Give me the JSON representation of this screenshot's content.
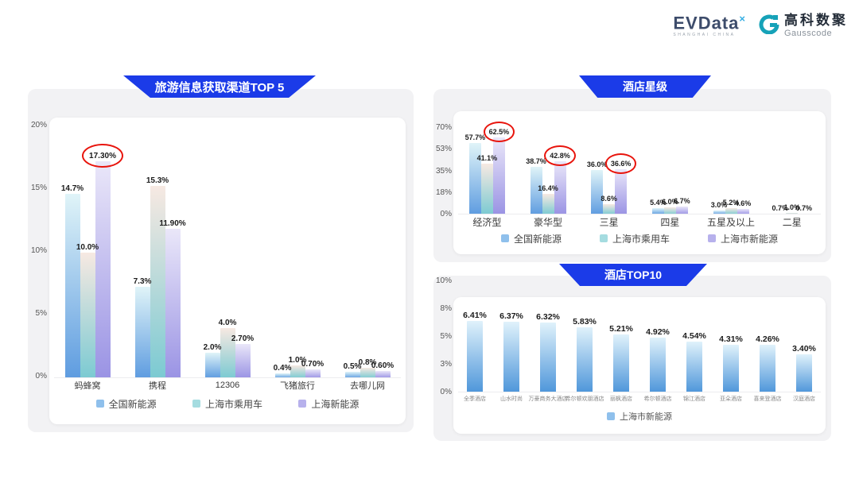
{
  "header": {
    "evdata_name": "EVData",
    "evdata_sup": "×",
    "evdata_tagline": "SHANGHAI CHINA",
    "gausscode_cn": "高科数聚",
    "gausscode_en": "Gausscode"
  },
  "colors": {
    "banner_blue": "#1b3be8",
    "panel_gray": "#f2f2f4",
    "annotation_red": "#e8140c",
    "gauss_teal": "#16a2b8"
  },
  "chart_data": [
    {
      "type": "bar",
      "title": "旅游信息获取渠道TOP 5",
      "categories": [
        "蚂蜂窝",
        "携程",
        "12306",
        "飞猪旅行",
        "去哪儿网"
      ],
      "yticks": [
        "0%",
        "5%",
        "10%",
        "15%",
        "20%"
      ],
      "ylim": [
        0,
        20
      ],
      "grid": false,
      "legend_position": "bottom",
      "series": [
        {
          "name": "全国新能源",
          "values": [
            14.7,
            7.3,
            2.0,
            0.4,
            0.5
          ],
          "labels": [
            "14.7%",
            "7.3%",
            "2.0%",
            "0.4%",
            "0.5%"
          ],
          "swatch": "#8fc0ec",
          "gradient": [
            "#e0f4f8",
            "#5e9ce0"
          ],
          "circled": []
        },
        {
          "name": "上海市乘用车",
          "values": [
            10.0,
            15.3,
            4.0,
            1.0,
            0.8
          ],
          "labels": [
            "10.0%",
            "15.3%",
            "4.0%",
            "1.0%",
            "0.8%"
          ],
          "swatch": "#a5dce0",
          "gradient": [
            "#f7e9e2",
            "#7bcad2"
          ],
          "circled": []
        },
        {
          "name": "上海新能源",
          "values": [
            17.3,
            11.9,
            2.7,
            0.7,
            0.6
          ],
          "labels": [
            "17.30%",
            "11.90%",
            "2.70%",
            "0.70%",
            "0.60%"
          ],
          "swatch": "#b7b1ec",
          "gradient": [
            "#eae7f9",
            "#9a93e4"
          ],
          "circled": [
            0
          ]
        }
      ]
    },
    {
      "type": "bar",
      "title": "酒店星级",
      "categories": [
        "经济型",
        "豪华型",
        "三星",
        "四星",
        "五星及以上",
        "二星"
      ],
      "yticks": [
        "0%",
        "18%",
        "35%",
        "53%",
        "70%"
      ],
      "ylim": [
        0,
        70
      ],
      "grid": false,
      "legend_position": "bottom",
      "series": [
        {
          "name": "全国新能源",
          "values": [
            57.7,
            38.7,
            36.0,
            5.4,
            3.0,
            0.7
          ],
          "labels": [
            "57.7%",
            "38.7%",
            "36.0%",
            "5.4%",
            "3.0%",
            "0.7%"
          ],
          "swatch": "#8fc0ec",
          "gradient": [
            "#e0f4f8",
            "#5e9ce0"
          ],
          "circled": []
        },
        {
          "name": "上海市乘用车",
          "values": [
            41.1,
            16.4,
            8.6,
            6.0,
            5.2,
            1.0
          ],
          "labels": [
            "41.1%",
            "16.4%",
            "8.6%",
            "6.0%",
            "5.2%",
            "1.0%"
          ],
          "swatch": "#a5dce0",
          "gradient": [
            "#f7e9e2",
            "#7bcad2"
          ],
          "circled": []
        },
        {
          "name": "上海市新能源",
          "values": [
            62.5,
            42.8,
            36.6,
            6.7,
            4.6,
            0.7
          ],
          "labels": [
            "62.5%",
            "42.8%",
            "36.6%",
            "6.7%",
            "4.6%",
            "0.7%"
          ],
          "swatch": "#b7b1ec",
          "gradient": [
            "#eae7f9",
            "#9a93e4"
          ],
          "circled": [
            0,
            1,
            2
          ]
        }
      ]
    },
    {
      "type": "bar",
      "title": "酒店TOP10",
      "categories": [
        "全季酒店",
        "山水时尚",
        "万豪商务大酒店",
        "希尔顿欢朋酒店",
        "丽枫酒店",
        "希尔顿酒店",
        "锦江酒店",
        "亚朵酒店",
        "喜来登酒店",
        "汉庭酒店"
      ],
      "yticks": [
        "0%",
        "3%",
        "5%",
        "8%",
        "10%"
      ],
      "ylim": [
        0,
        10
      ],
      "grid": false,
      "legend_position": "bottom",
      "series": [
        {
          "name": "上海市新能源",
          "values": [
            6.41,
            6.37,
            6.32,
            5.83,
            5.21,
            4.92,
            4.54,
            4.31,
            4.26,
            3.4
          ],
          "labels": [
            "6.41%",
            "6.37%",
            "6.32%",
            "5.83%",
            "5.21%",
            "4.92%",
            "4.54%",
            "4.31%",
            "4.26%",
            "3.40%"
          ],
          "swatch": "#8fc0ec",
          "gradient": [
            "#e0f2fb",
            "#4e96da"
          ],
          "circled": []
        }
      ]
    }
  ]
}
